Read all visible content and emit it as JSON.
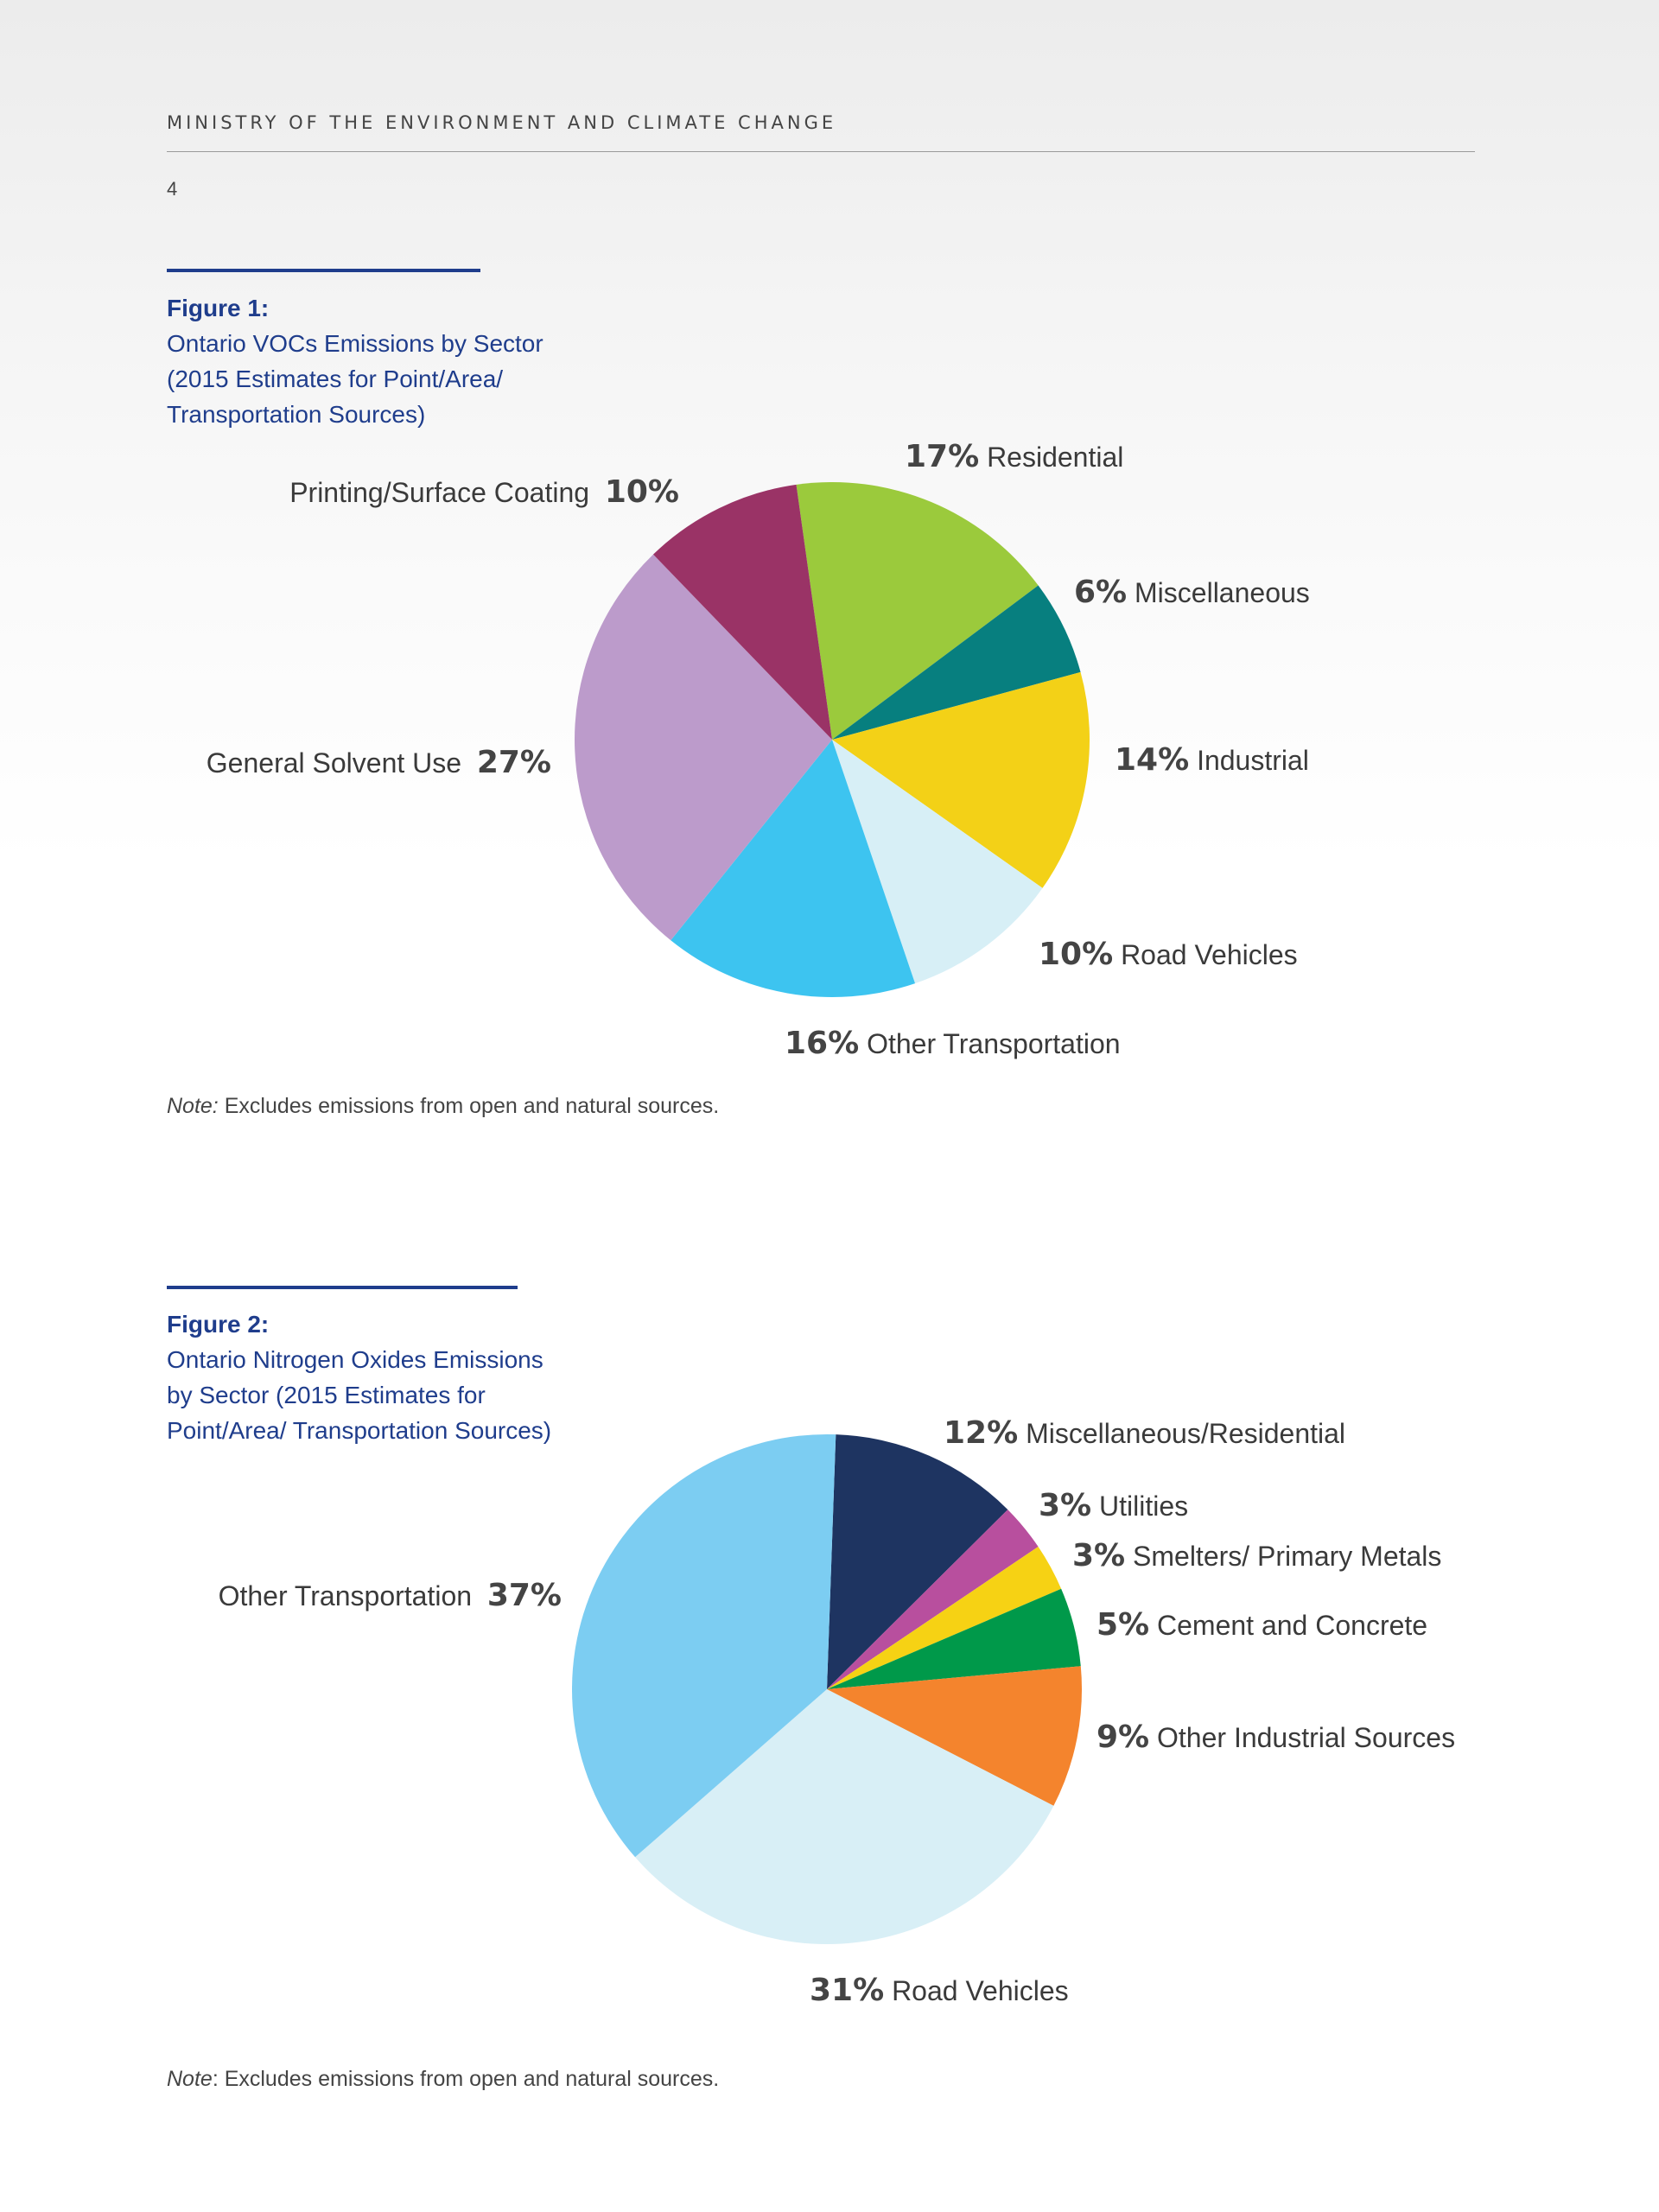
{
  "header": {
    "running_head": "MINISTRY OF THE ENVIRONMENT AND CLIMATE CHANGE",
    "page_number": "4"
  },
  "figures": [
    {
      "label": "Figure 1:",
      "title": "Ontario VOCs Emissions by Sector (2015 Estimates for Point/Area/ Transportation Sources)",
      "note_prefix": "Note:",
      "note_text": " Excludes emissions from open and natural sources."
    },
    {
      "label": "Figure 2:",
      "title": "Ontario Nitrogen Oxides Emissions by Sector (2015 Estimates for Point/Area/ Transportation Sources)",
      "note_prefix": "Note",
      "note_text": ": Excludes emissions from open and natural sources."
    }
  ],
  "chart_data": [
    {
      "type": "pie",
      "title": "Ontario VOCs Emissions by Sector (2015 Estimates for Point/Area/ Transportation Sources)",
      "slices": [
        {
          "name": "Residential",
          "value": 17,
          "label": "17%",
          "color": "#9bca3c"
        },
        {
          "name": "Miscellaneous",
          "value": 6,
          "label": "6%",
          "color": "#077f7f"
        },
        {
          "name": "Industrial",
          "value": 14,
          "label": "14%",
          "color": "#f3d117"
        },
        {
          "name": "Road Vehicles",
          "value": 10,
          "label": "10%",
          "color": "#d7eff6"
        },
        {
          "name": "Other Transportation",
          "value": 16,
          "label": "16%",
          "color": "#3dc4f0"
        },
        {
          "name": "General Solvent Use",
          "value": 27,
          "label": "27%",
          "color": "#bc9bcb"
        },
        {
          "name": "Printing/Surface Coating",
          "value": 10,
          "label": "10%",
          "color": "#9a3366"
        }
      ]
    },
    {
      "type": "pie",
      "title": "Ontario Nitrogen Oxides Emissions by Sector (2015 Estimates for Point/Area/ Transportation Sources)",
      "slices": [
        {
          "name": "Miscellaneous/Residential",
          "value": 12,
          "label": "12%",
          "color": "#1e3461"
        },
        {
          "name": "Utilities",
          "value": 3,
          "label": "3%",
          "color": "#b84f9e"
        },
        {
          "name": "Smelters/ Primary Metals",
          "value": 3,
          "label": "3%",
          "color": "#f6d214"
        },
        {
          "name": "Cement and Concrete",
          "value": 5,
          "label": "5%",
          "color": "#00994a"
        },
        {
          "name": "Other Industrial Sources",
          "value": 9,
          "label": "9%",
          "color": "#f4842d"
        },
        {
          "name": "Road Vehicles",
          "value": 31,
          "label": "31%",
          "color": "#d8eff6"
        },
        {
          "name": "Other Transportation",
          "value": 37,
          "label": "37%",
          "color": "#7ccdf2"
        }
      ]
    }
  ]
}
